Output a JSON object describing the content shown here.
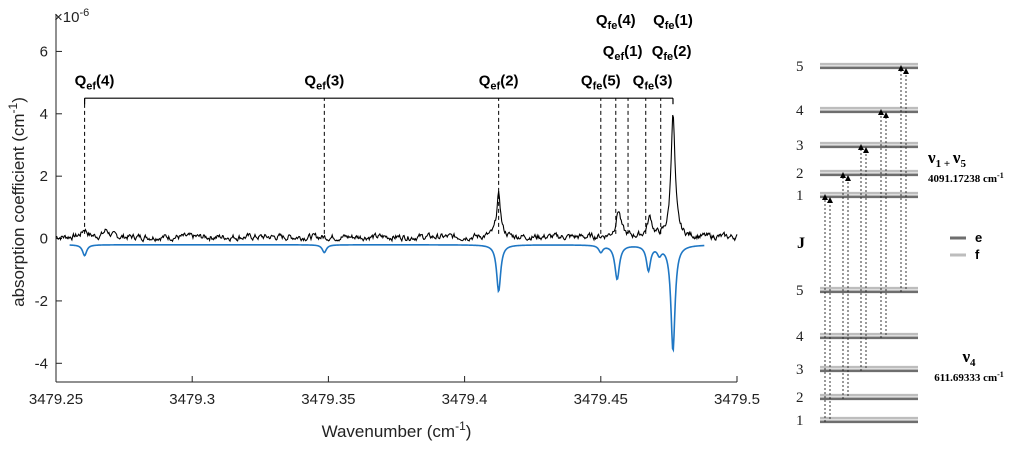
{
  "chart_data": {
    "type": "line",
    "xlabel": "Wavenumber (cm",
    "xlabel_sup": "-1",
    "xlabel_end": ")",
    "ylabel": "absorption coefficient (cm",
    "ylabel_sup": "-1",
    "ylabel_end": ")",
    "y_multiplier": "×10",
    "y_multiplier_exp": "-6",
    "xlim": [
      3479.25,
      3479.5
    ],
    "ylim": [
      -4.6,
      7.2
    ],
    "x_ticks": [
      "3479.25",
      "3479.3",
      "3479.35",
      "3479.4",
      "3479.45",
      "3479.5"
    ],
    "y_ticks": [
      "-4",
      "-2",
      "0",
      "2",
      "4",
      "6"
    ],
    "series": [
      {
        "color": "#000000",
        "baseline": 0.05,
        "peaks": [
          {
            "x": 3479.2605,
            "h": 0.25,
            "w": 0.0012
          },
          {
            "x": 3479.2685,
            "h": 0.22,
            "w": 0.0012
          },
          {
            "x": 3479.4125,
            "h": 1.35,
            "w": 0.0009
          },
          {
            "x": 3479.4565,
            "h": 0.85,
            "w": 0.0011
          },
          {
            "x": 3479.468,
            "h": 0.6,
            "w": 0.0011
          },
          {
            "x": 3479.4765,
            "h": 3.95,
            "w": 0.0009
          }
        ]
      },
      {
        "color": "#1f77c4",
        "baseline": -0.2,
        "x_start": 3479.255,
        "x_end": 3479.488,
        "peaks": [
          {
            "x": 3479.2605,
            "h": -0.35,
            "w": 0.0009
          },
          {
            "x": 3479.3485,
            "h": -0.25,
            "w": 0.0009
          },
          {
            "x": 3479.4125,
            "h": -1.5,
            "w": 0.0009
          },
          {
            "x": 3479.45,
            "h": -0.22,
            "w": 0.0009
          },
          {
            "x": 3479.456,
            "h": -1.1,
            "w": 0.001
          },
          {
            "x": 3479.4675,
            "h": -0.8,
            "w": 0.0009
          },
          {
            "x": 3479.4715,
            "h": -0.25,
            "w": 0.0009
          },
          {
            "x": 3479.4765,
            "h": -3.4,
            "w": 0.0009
          }
        ]
      }
    ],
    "bracket": {
      "x_from": 3479.2605,
      "x_to": 3479.4765,
      "y": 4.5
    },
    "annotations": [
      {
        "main": "Q",
        "sub": "ef",
        "num": "(4)",
        "x": 3479.2605,
        "y": 4.9,
        "anchor": "start",
        "dx": -10
      },
      {
        "main": "Q",
        "sub": "ef",
        "num": "(3)",
        "x": 3479.3485,
        "y": 4.9,
        "anchor": "middle",
        "dx": 0
      },
      {
        "main": "Q",
        "sub": "ef",
        "num": "(2)",
        "x": 3479.4125,
        "y": 4.9,
        "anchor": "middle",
        "dx": 0
      },
      {
        "main": "Q",
        "sub": "fe",
        "num": "(5)",
        "x": 3479.45,
        "y": 4.9,
        "anchor": "middle",
        "dx": 0
      },
      {
        "main": "Q",
        "sub": "fe",
        "num": "(3)",
        "x": 3479.469,
        "y": 4.9,
        "anchor": "middle",
        "dx": 0
      },
      {
        "main": "Q",
        "sub": "ef",
        "num": "(1)",
        "x": 3479.458,
        "y": 5.85,
        "anchor": "middle",
        "dx": 0
      },
      {
        "main": "Q",
        "sub": "fe",
        "num": "(2)",
        "x": 3479.476,
        "y": 5.85,
        "anchor": "middle",
        "dx": 0
      },
      {
        "main": "Q",
        "sub": "fe",
        "num": "(4)",
        "x": 3479.4555,
        "y": 6.85,
        "anchor": "middle",
        "dx": 0
      },
      {
        "main": "Q",
        "sub": "fe",
        "num": "(1)",
        "x": 3479.4765,
        "y": 6.85,
        "anchor": "middle",
        "dx": 0
      }
    ],
    "dashed_markers": [
      {
        "x": 3479.2605,
        "y_top": 4.5
      },
      {
        "x": 3479.3485,
        "y_top": 4.5
      },
      {
        "x": 3479.4125,
        "y_top": 4.5
      },
      {
        "x": 3479.45,
        "y_top": 4.5
      },
      {
        "x": 3479.4555,
        "y_top": 4.5
      },
      {
        "x": 3479.46,
        "y_top": 4.5
      },
      {
        "x": 3479.4665,
        "y_top": 4.5
      },
      {
        "x": 3479.472,
        "y_top": 4.5
      }
    ]
  },
  "energy_diagram": {
    "upper_state": {
      "label": "ν",
      "sub": "1 + ",
      "label2": "ν",
      "sub2": "5",
      "energy": "4091.17238 cm",
      "energy_sup": "-1"
    },
    "lower_state": {
      "label": "ν",
      "sub": "4",
      "energy": "611.69333 cm",
      "energy_sup": "-1"
    },
    "axis_label": "J",
    "upper_levels": [
      "5",
      "4",
      "3",
      "2",
      "1"
    ],
    "lower_levels": [
      "5",
      "4",
      "3",
      "2",
      "1"
    ],
    "legend": [
      {
        "label": "e",
        "color": "#6e6e6e"
      },
      {
        "label": "f",
        "color": "#bdbdbd"
      }
    ]
  }
}
